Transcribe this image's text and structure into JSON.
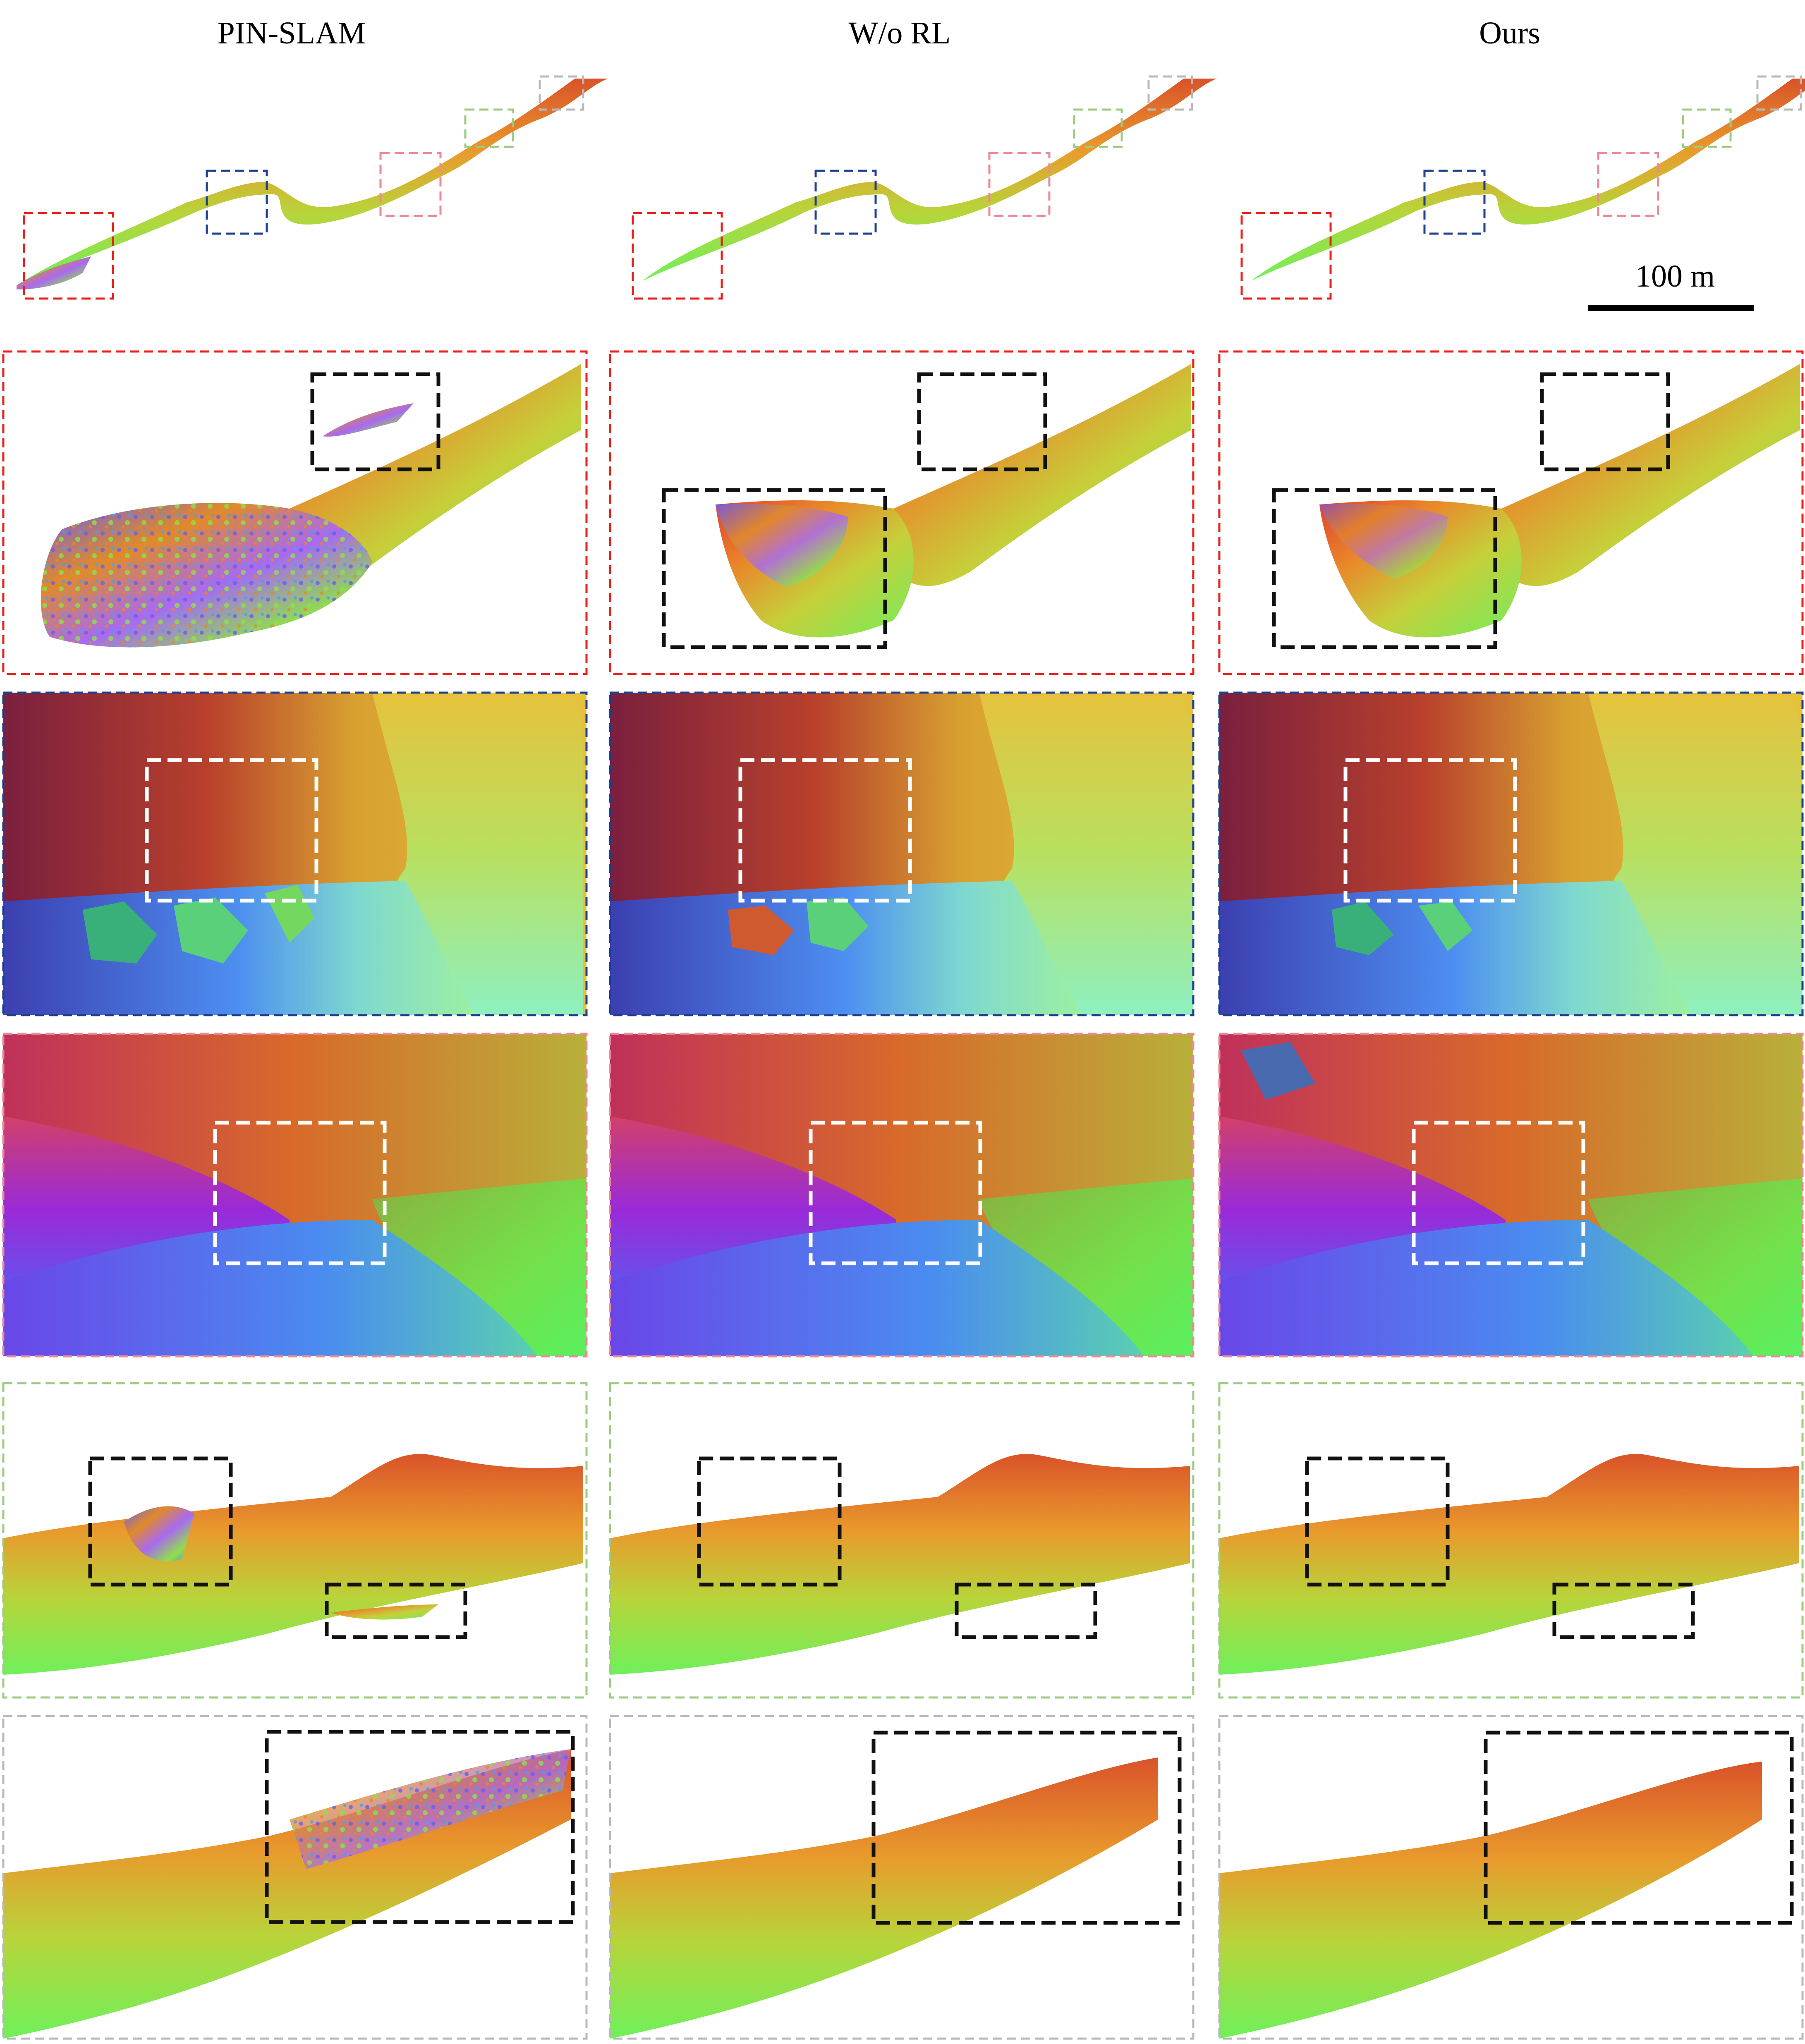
{
  "columns": [
    {
      "key": "pin",
      "title": "PIN-SLAM"
    },
    {
      "key": "worl",
      "title": "W/o RL"
    },
    {
      "key": "ours",
      "title": "Ours"
    }
  ],
  "scale_bar": {
    "label": "100 m"
  },
  "region_colors": {
    "red": "#e8201a",
    "blue": "#1d3f8f",
    "pink": "#ea8a96",
    "green": "#9ccb82",
    "gray": "#b8b8b8",
    "black": "#111111",
    "white": "#ffffff"
  }
}
